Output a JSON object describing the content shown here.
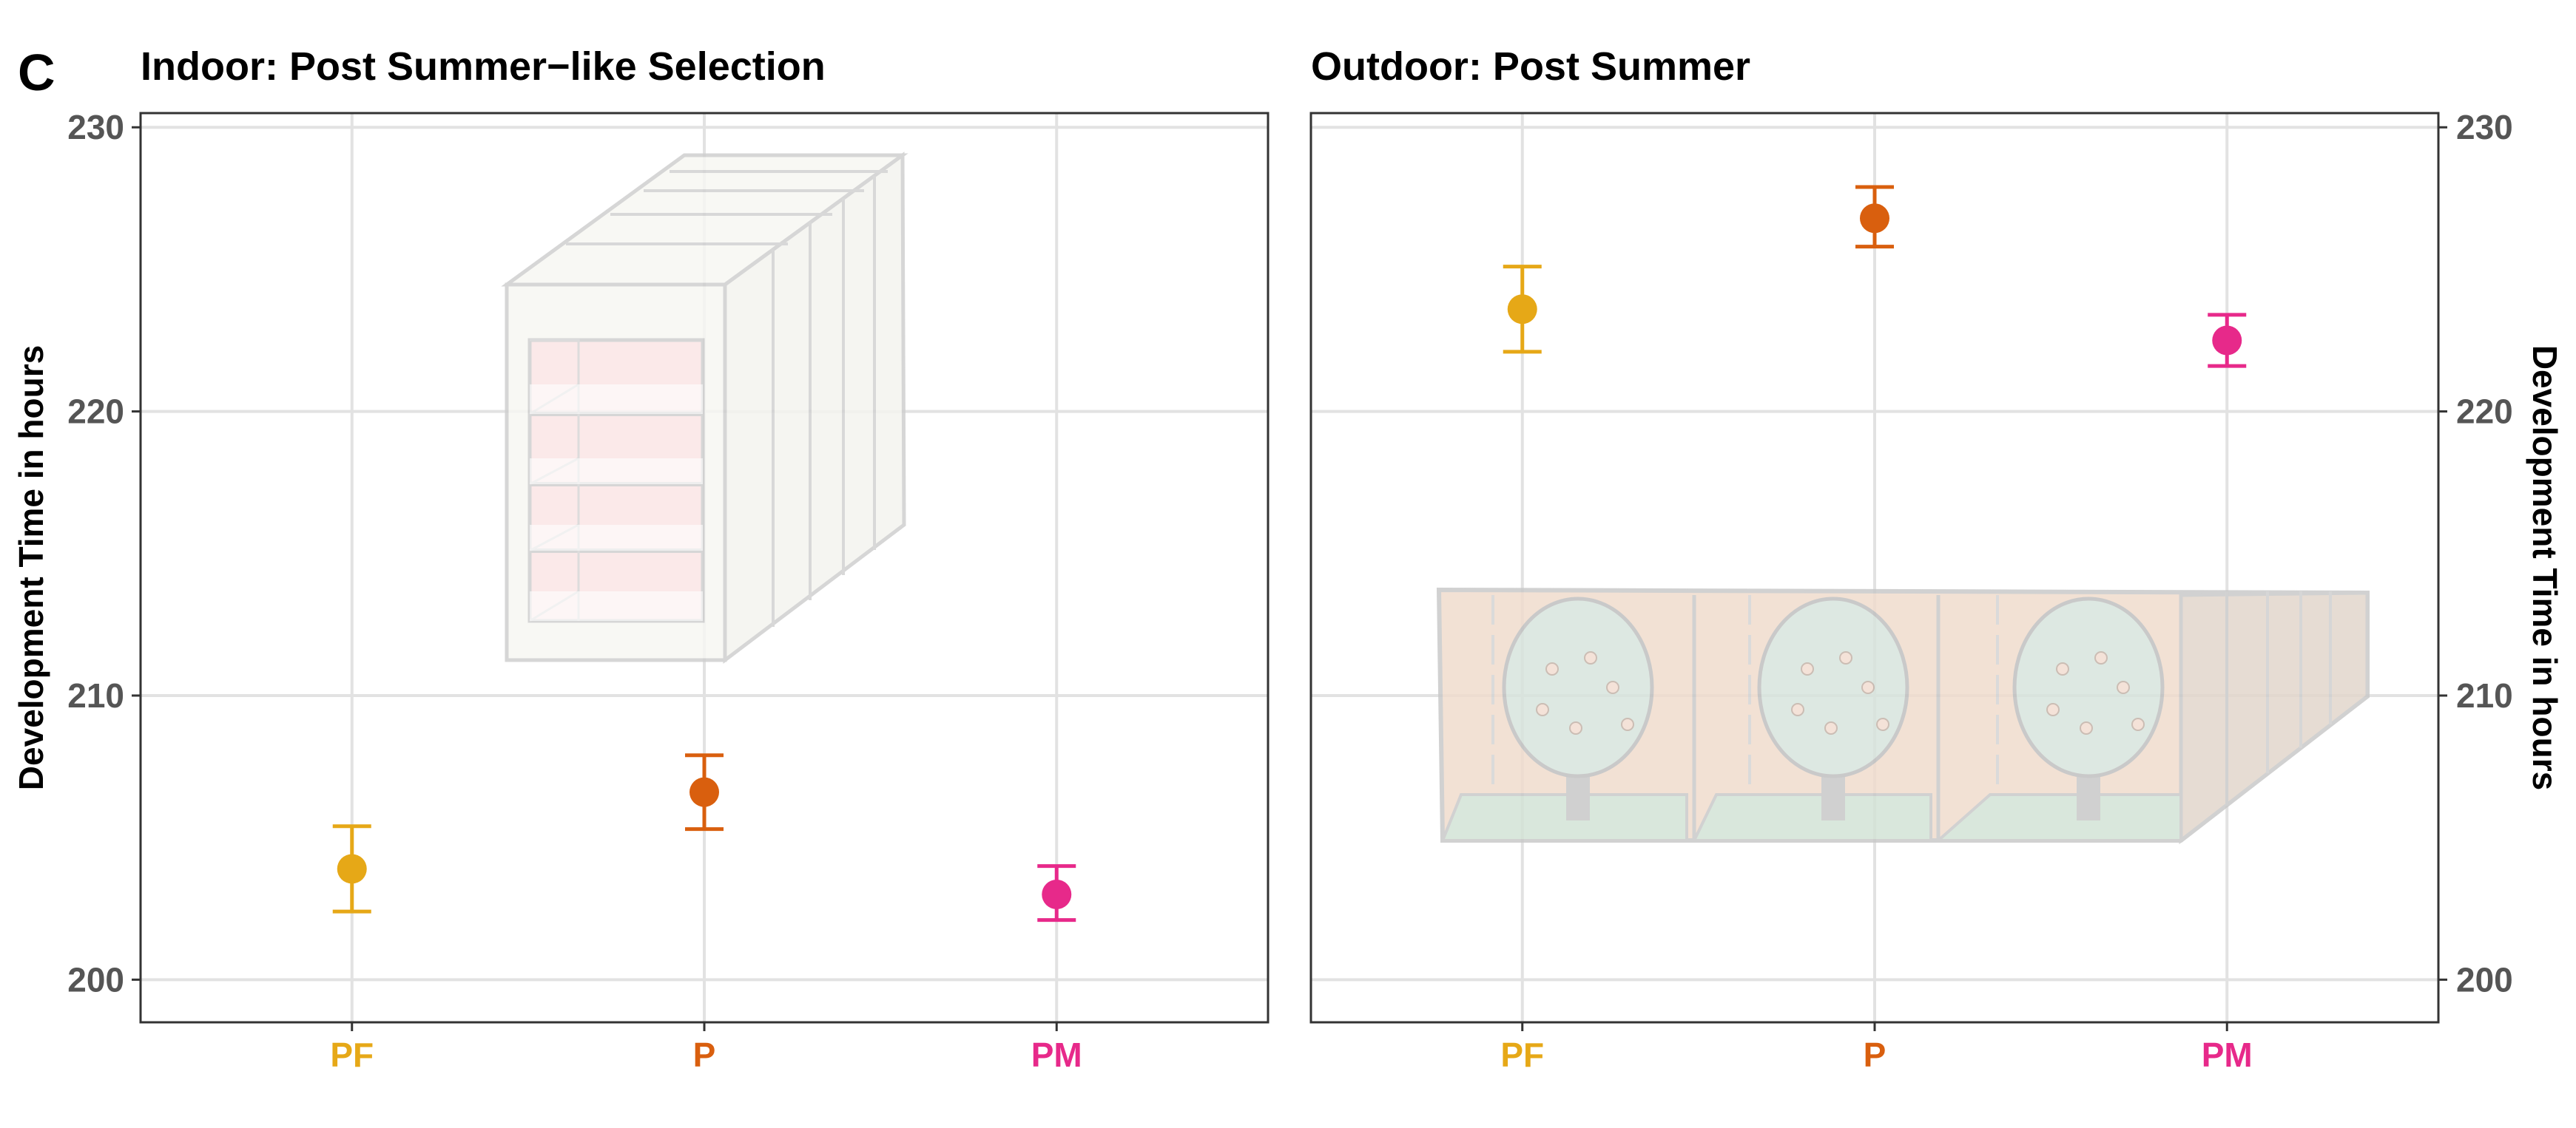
{
  "panel_letter": "C",
  "y_axis_label": "Development Time in hours",
  "colors": {
    "PF": "#E6A817",
    "P": "#D95F0E",
    "PM": "#E7298A"
  },
  "chart_data": [
    {
      "type": "scatter",
      "title": "Indoor: Post Summer−like Selection",
      "ylabel": "Development Time in hours",
      "ylim": [
        198.5,
        230.5
      ],
      "yticks": [
        200,
        210,
        220,
        230
      ],
      "categories": [
        "PF",
        "P",
        "PM"
      ],
      "values": [
        203.9,
        206.6,
        203.0
      ],
      "err_low": [
        202.4,
        205.3,
        202.1
      ],
      "err_high": [
        205.4,
        207.9,
        204.0
      ],
      "grid": true,
      "illustration": "climate-chamber"
    },
    {
      "type": "scatter",
      "title": "Outdoor: Post Summer",
      "ylabel": "Development Time in hours",
      "ylim": [
        198.5,
        230.5
      ],
      "yticks": [
        200,
        210,
        220,
        230
      ],
      "categories": [
        "PF",
        "P",
        "PM"
      ],
      "values": [
        223.6,
        226.8,
        222.5
      ],
      "err_low": [
        222.1,
        225.8,
        221.6
      ],
      "err_high": [
        225.1,
        227.9,
        223.4
      ],
      "grid": true,
      "illustration": "outdoor-orchard-enclosure"
    }
  ]
}
